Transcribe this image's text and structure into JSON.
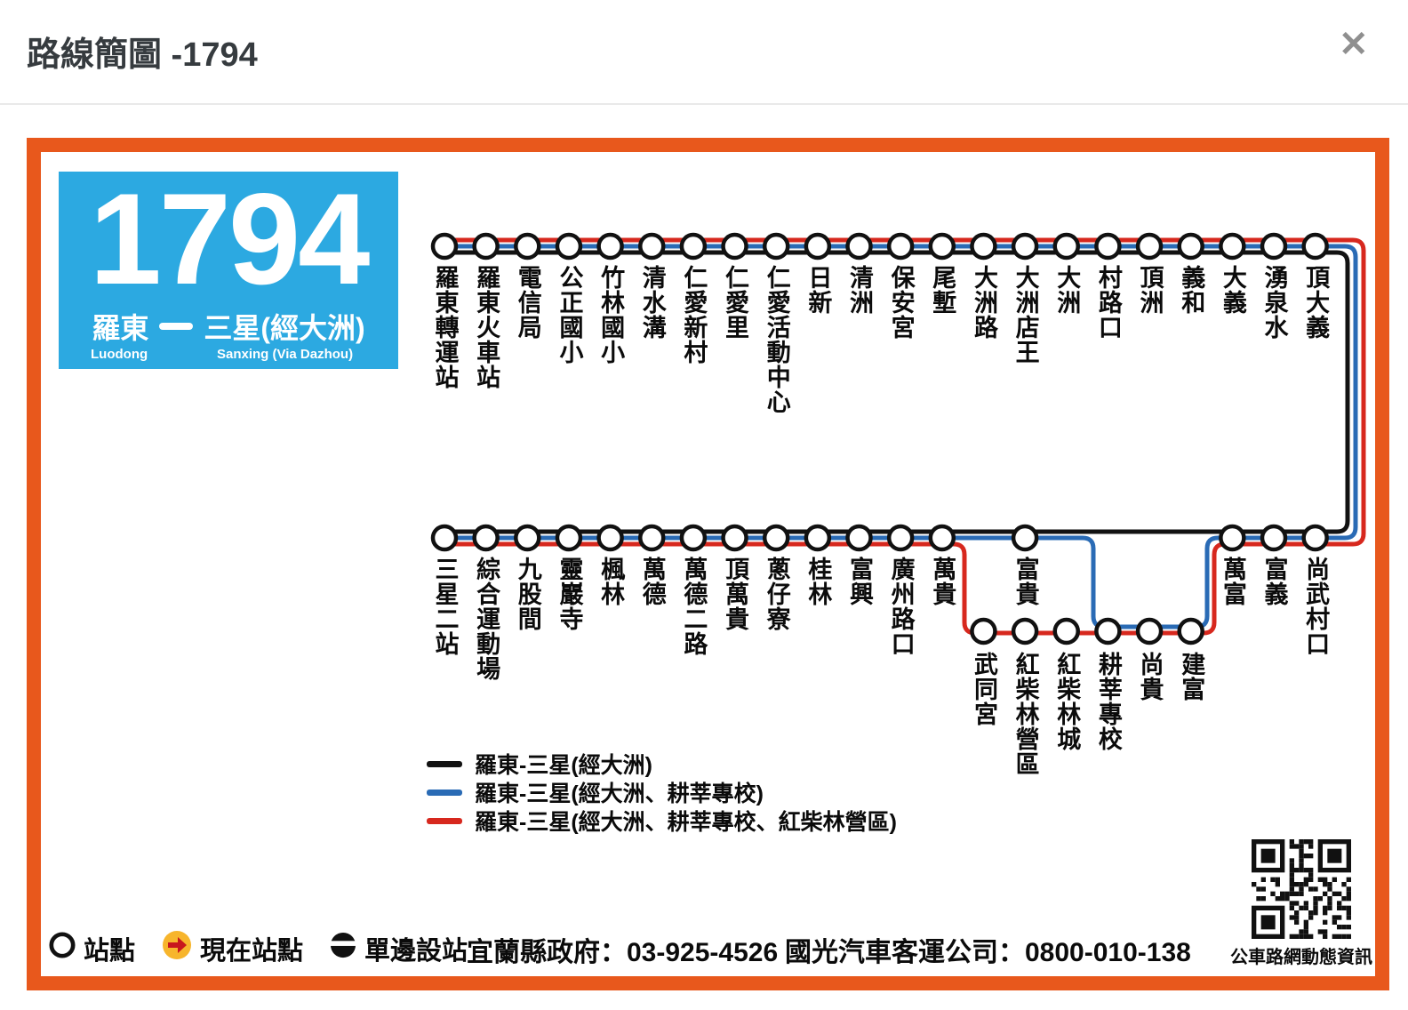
{
  "header": {
    "title": "路線簡圖 -1794",
    "close_glyph": "✕"
  },
  "badge": {
    "number": "1794",
    "from_zh": "羅東",
    "to_zh": "三星(經大洲)",
    "from_en": "Luodong",
    "to_en": "Sanxing (Via Dazhou)",
    "color": "#2CA9E1"
  },
  "colors": {
    "frame_orange": "#E8581C",
    "badge_blue": "#2CA9E1"
  },
  "diagram": {
    "line_colors": {
      "black": "#121212",
      "blue": "#2A6BB5",
      "red": "#D7281E"
    },
    "top_stations": [
      "羅東轉運站",
      "羅東火車站",
      "電信局",
      "公正國小",
      "竹林國小",
      "清水溝",
      "仁愛新村",
      "仁愛里",
      "仁愛活動中心",
      "日新",
      "清洲",
      "保安宮",
      "尾塹",
      "大洲路",
      "大洲店王",
      "大洲",
      "村路口",
      "頂洲",
      "義和",
      "大義",
      "湧泉水",
      "頂大義"
    ],
    "bottom_main": [
      {
        "name": "三星二站",
        "col": 0
      },
      {
        "name": "綜合運動場",
        "col": 1
      },
      {
        "name": "九股間",
        "col": 2
      },
      {
        "name": "靈巖寺",
        "col": 3
      },
      {
        "name": "楓林",
        "col": 4
      },
      {
        "name": "萬德",
        "col": 5
      },
      {
        "name": "萬德二路",
        "col": 6
      },
      {
        "name": "頂萬貴",
        "col": 7
      },
      {
        "name": "蔥仔寮",
        "col": 8
      },
      {
        "name": "桂林",
        "col": 9
      },
      {
        "name": "富興",
        "col": 10
      },
      {
        "name": "廣州路口",
        "col": 11
      },
      {
        "name": "萬貴",
        "col": 12
      },
      {
        "name": "富貴",
        "col": 14
      },
      {
        "name": "萬富",
        "col": 19
      },
      {
        "name": "富義",
        "col": 20
      },
      {
        "name": "尚武村口",
        "col": 21
      }
    ],
    "branch": [
      {
        "name": "武同宮",
        "col": 13
      },
      {
        "name": "紅柴林營區",
        "col": 14
      },
      {
        "name": "紅柴林城",
        "col": 15
      },
      {
        "name": "耕莘專校",
        "col": 16
      },
      {
        "name": "尚貴",
        "col": 17
      },
      {
        "name": "建富",
        "col": 18
      }
    ]
  },
  "legend": [
    {
      "color": "#121212",
      "label": "羅東-三星(經大洲)"
    },
    {
      "color": "#2A6BB5",
      "label": "羅東-三星(經大洲、耕莘專校)"
    },
    {
      "color": "#D7281E",
      "label": "羅東-三星(經大洲、耕莘專校、紅柴林營區)"
    }
  ],
  "footer": {
    "station_label": "站點",
    "current_label": "現在站點",
    "oneside_label": "單邊設站",
    "gov": "宜蘭縣政府：03-925-4526",
    "bus_co": "國光汽車客運公司：0800-010-138",
    "qr_caption": "公車路網動態資訊"
  }
}
